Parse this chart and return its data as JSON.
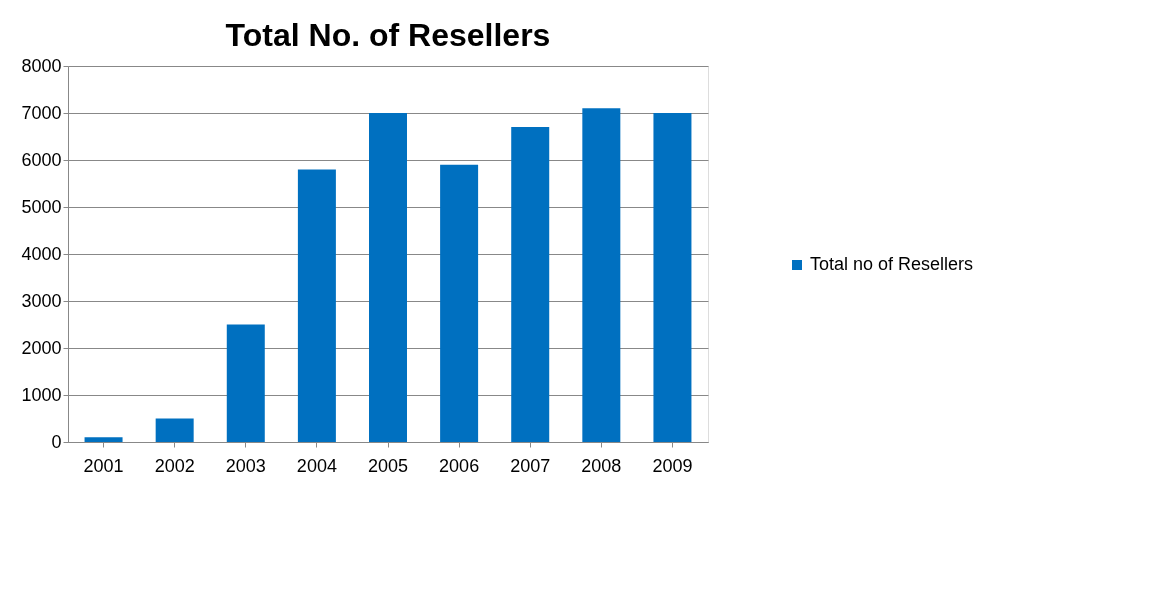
{
  "chart_data": {
    "type": "bar",
    "title": "Total No. of Resellers",
    "categories": [
      "2001",
      "2002",
      "2003",
      "2004",
      "2005",
      "2006",
      "2007",
      "2008",
      "2009"
    ],
    "series": [
      {
        "name": "Total no of Resellers",
        "color": "#0070c0",
        "values": [
          100,
          500,
          2500,
          5800,
          7000,
          5900,
          6700,
          7100,
          7000
        ]
      }
    ],
    "ylim": [
      0,
      8000
    ],
    "yticks": [
      0,
      1000,
      2000,
      3000,
      4000,
      5000,
      6000,
      7000,
      8000
    ],
    "grid": "y",
    "legend": "right"
  }
}
